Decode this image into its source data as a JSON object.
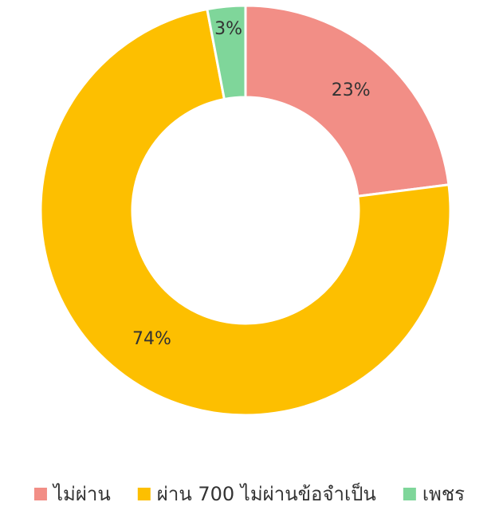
{
  "chart_data": {
    "type": "donut",
    "categories": [
      "ไม่ผ่าน",
      "ผ่าน 700 ไม่ผ่านข้อจำเป็น",
      "เพชร"
    ],
    "values": [
      23,
      74,
      3
    ],
    "value_labels": [
      "23%",
      "74%",
      "3%"
    ],
    "colors": [
      "#f28e86",
      "#fdbf00",
      "#7fd69a"
    ],
    "legend": "bottom"
  }
}
